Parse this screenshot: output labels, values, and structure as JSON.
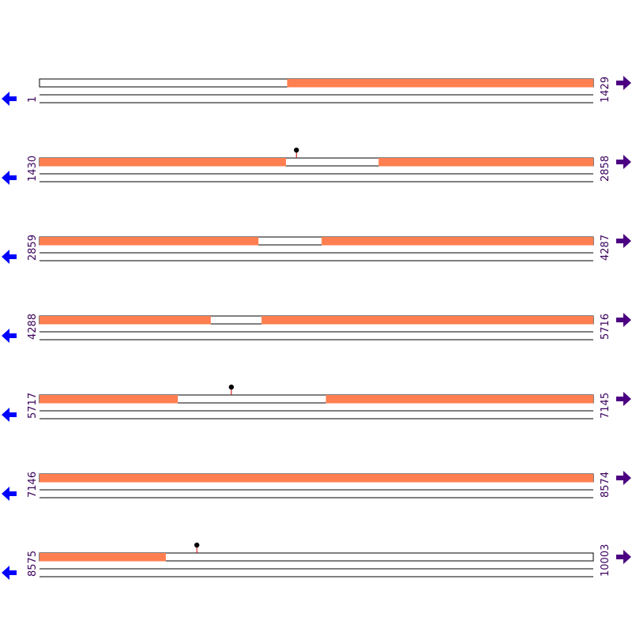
{
  "colors": {
    "feature": "#ff7f50",
    "track_line": "#000000",
    "label": "#3a005c",
    "left_arrow": "#0000ff",
    "right_arrow": "#4b0082",
    "marker_head": "#000000",
    "marker_stem": "#cc0000"
  },
  "icons": {
    "left": "arrow-left-icon",
    "right": "arrow-right-icon"
  },
  "rows": [
    {
      "start_label": "1",
      "end_label": "1429",
      "start": 1,
      "end": 1429,
      "features": [
        {
          "from": 640,
          "to": 1429
        }
      ],
      "markers": []
    },
    {
      "start_label": "1430",
      "end_label": "2858",
      "start": 1430,
      "end": 2858,
      "features": [
        {
          "from": 1430,
          "to": 2065
        },
        {
          "from": 2305,
          "to": 2858
        }
      ],
      "markers": [
        2093
      ]
    },
    {
      "start_label": "2859",
      "end_label": "4287",
      "start": 2859,
      "end": 4287,
      "features": [
        {
          "from": 2859,
          "to": 3423
        },
        {
          "from": 3587,
          "to": 4287
        }
      ],
      "markers": []
    },
    {
      "start_label": "4288",
      "end_label": "5716",
      "start": 4288,
      "end": 5716,
      "features": [
        {
          "from": 4288,
          "to": 4729
        },
        {
          "from": 4861,
          "to": 5716
        }
      ],
      "markers": []
    },
    {
      "start_label": "5717",
      "end_label": "7145",
      "start": 5717,
      "end": 7145,
      "features": [
        {
          "from": 5717,
          "to": 6073
        },
        {
          "from": 6456,
          "to": 7145
        }
      ],
      "markers": [
        6212
      ]
    },
    {
      "start_label": "7146",
      "end_label": "8574",
      "start": 7146,
      "end": 8574,
      "features": [
        {
          "from": 7146,
          "to": 8574
        }
      ],
      "markers": []
    },
    {
      "start_label": "8575",
      "end_label": "10003",
      "start": 8575,
      "end": 10003,
      "features": [
        {
          "from": 8575,
          "to": 8900
        }
      ],
      "markers": [
        8981
      ]
    }
  ]
}
